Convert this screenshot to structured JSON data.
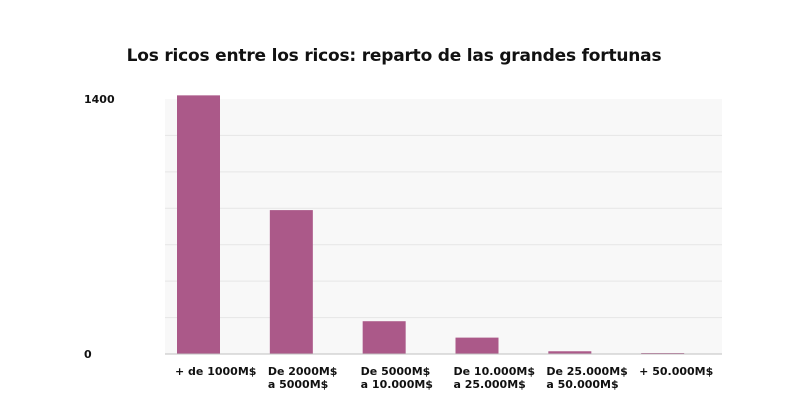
{
  "chart_data": {
    "type": "bar",
    "title": "Los ricos entre los ricos: reparto de las grandes fortunas",
    "xlabel": "",
    "ylabel": "",
    "categories": [
      [
        "+ de 1000M$"
      ],
      [
        "De 2000M$",
        "a 5000M$"
      ],
      [
        "De 5000M$",
        "a 10.000M$"
      ],
      [
        "De 10.000M$",
        "a 25.000M$"
      ],
      [
        "De 25.000M$",
        "a 50.000M$"
      ],
      [
        "+ 50.000M$"
      ]
    ],
    "values": [
      1420,
      790,
      180,
      90,
      15,
      4
    ],
    "ylim": [
      0,
      1400
    ],
    "yticks": [
      {
        "value": 0,
        "label": "0"
      },
      {
        "value": 1400,
        "label": "1400"
      }
    ],
    "grid": true,
    "legend": "none",
    "colors": {
      "bar": "#ab5989",
      "plot_background": "#f8f8f8",
      "grid": "#e6e6e6",
      "axis": "#bfbfbf",
      "text": "#111111"
    }
  }
}
